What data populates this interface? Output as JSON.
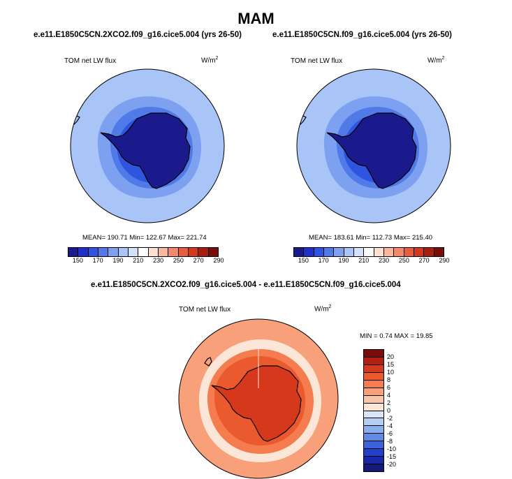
{
  "title": "MAM",
  "top_left": {
    "case": "e.e11.E1850C5CN.2XCO2.f09_g16.cice5.004 (yrs 26-50)",
    "variable": "TOM net LW flux",
    "units": "W/m",
    "units_sup": "2",
    "stats": "MEAN= 190.71  Min= 122.67  Max= 221.74"
  },
  "top_right": {
    "case": "e.e11.E1850C5CN.f09_g16.cice5.004 (yrs 26-50)",
    "variable": "TOM net LW flux",
    "units": "W/m",
    "units_sup": "2",
    "stats": "MEAN= 183.61  Min= 112.73  Max= 215.40"
  },
  "top_colorbar": {
    "colors": [
      "#1a1a8c",
      "#1f30c8",
      "#2f55e0",
      "#4f7ae8",
      "#7da1f0",
      "#a9c5f7",
      "#d3e2fb",
      "#ffffff",
      "#fde0d2",
      "#f9b79c",
      "#f3896a",
      "#e85e3c",
      "#d23a1e",
      "#a81e10",
      "#7a0c0a"
    ],
    "ticks": [
      "150",
      "170",
      "190",
      "210",
      "230",
      "250",
      "270",
      "290"
    ]
  },
  "bottom": {
    "case": "e.e11.E1850C5CN.2XCO2.f09_g16.cice5.004 - e.e11.E1850C5CN.f09_g16.cice5.004",
    "variable": "TOM net LW flux",
    "units": "W/m",
    "units_sup": "2",
    "stats": "MIN =   0.74 MAX =  19.85"
  },
  "bottom_colorbar": {
    "colors": [
      "#7a0c0a",
      "#b22013",
      "#d6381b",
      "#ea5a2e",
      "#f47c4e",
      "#f8a07a",
      "#fbc6a8",
      "#fce6d8",
      "#d9e6f8",
      "#b4cdf3",
      "#8aaeee",
      "#5f8ae6",
      "#3a63dc",
      "#2240cc",
      "#1a28a8",
      "#131a7a"
    ],
    "ticks": [
      "20",
      "15",
      "10",
      "8",
      "6",
      "4",
      "2",
      "0",
      "-2",
      "-4",
      "-6",
      "-8",
      "-10",
      "-15",
      "-20"
    ]
  },
  "map_colors": {
    "top_outer": "#a9c5f7",
    "top_mid": "#7da1f0",
    "top_inner": "#4f7ae8",
    "top_deep": "#2f55e0",
    "top_continent": "#1a1a8c",
    "diff_outer": "#f8a07a",
    "diff_mid": "#f47c4e",
    "diff_light": "#fce6d8",
    "diff_inner": "#ea5a2e",
    "diff_continent": "#d6381b"
  }
}
